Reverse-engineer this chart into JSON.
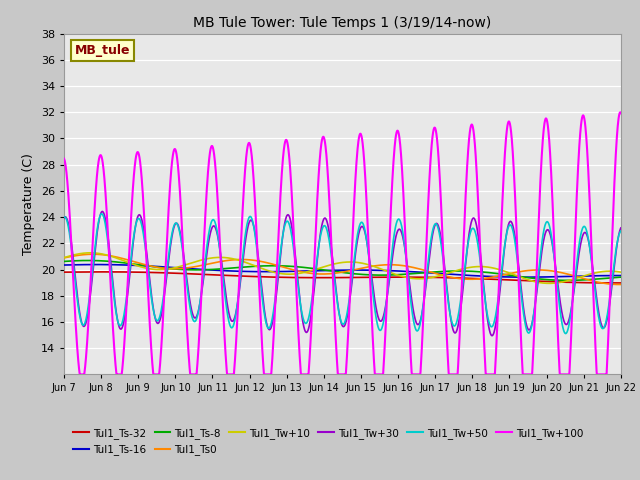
{
  "title": "MB Tule Tower: Tule Temps 1 (3/19/14-now)",
  "ylabel": "Temperature (C)",
  "ylim": [
    12,
    38
  ],
  "yticks": [
    14,
    16,
    18,
    20,
    22,
    24,
    26,
    28,
    30,
    32,
    34,
    36,
    38
  ],
  "xlim": [
    0,
    15
  ],
  "xtick_labels": [
    "Jun 7",
    "Jun 8",
    "Jun 9",
    "Jun 10",
    "Jun 11",
    "Jun 12",
    "Jun 13",
    "Jun 14",
    "Jun 15",
    "Jun 16",
    "Jun 17",
    "Jun 18",
    "Jun 19",
    "Jun 20",
    "Jun 21",
    "Jun 22"
  ],
  "xtick_positions": [
    0,
    1,
    2,
    3,
    4,
    5,
    6,
    7,
    8,
    9,
    10,
    11,
    12,
    13,
    14,
    15
  ],
  "series": {
    "Tul1_Ts-32": {
      "color": "#cc0000",
      "lw": 1.2
    },
    "Tul1_Ts-16": {
      "color": "#0000cc",
      "lw": 1.2
    },
    "Tul1_Ts-8": {
      "color": "#00aa00",
      "lw": 1.2
    },
    "Tul1_Ts0": {
      "color": "#ff8800",
      "lw": 1.2
    },
    "Tul1_Tw+10": {
      "color": "#cccc00",
      "lw": 1.2
    },
    "Tul1_Tw+30": {
      "color": "#9900cc",
      "lw": 1.2
    },
    "Tul1_Tw+50": {
      "color": "#00cccc",
      "lw": 1.2
    },
    "Tul1_Tw+100": {
      "color": "#ff00ff",
      "lw": 1.5
    }
  },
  "legend_box_facecolor": "#ffffcc",
  "legend_box_edgecolor": "#888800",
  "legend_text": "MB_tule",
  "fig_facecolor": "#c8c8c8",
  "ax_facecolor": "#e8e8e8"
}
